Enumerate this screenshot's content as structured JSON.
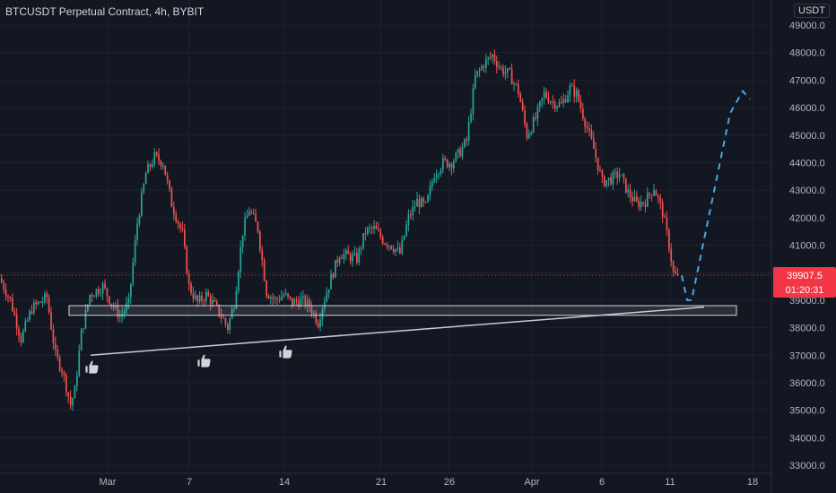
{
  "header": {
    "title": "BTCUSDT Perpetual Contract, 4h, BYBIT",
    "currency_unit": "USDT"
  },
  "price_badge": {
    "price": "39907.5",
    "countdown": "01:20:31",
    "color": "#f23645"
  },
  "colors": {
    "background": "#131722",
    "grid": "#1e222d",
    "up": "#26a69a",
    "down": "#ef5350",
    "trendline": "#c8ccd6",
    "projection": "#4aa8e0",
    "support_zone_border": "#d1d4dc"
  },
  "icons": [
    "thumbs-up-icon",
    "thumbs-up-icon",
    "thumbs-up-icon"
  ],
  "chart_data": {
    "type": "candlestick",
    "x_tick_labels": [
      "Mar",
      "7",
      "14",
      "21",
      "26",
      "Apr",
      "6",
      "11",
      "18"
    ],
    "y_tick_labels": [
      "33000.0",
      "34000.0",
      "35000.0",
      "36000.0",
      "37000.0",
      "38000.0",
      "39000.0",
      "40000.0",
      "41000.0",
      "42000.0",
      "43000.0",
      "44000.0",
      "45000.0",
      "46000.0",
      "47000.0",
      "48000.0",
      "49000.0"
    ],
    "ylim": [
      32800,
      49900
    ],
    "grid": true,
    "last_price": 39907.5,
    "price_path_anchors": [
      [
        0,
        39800
      ],
      [
        5,
        39000
      ],
      [
        10,
        37600
      ],
      [
        15,
        38700
      ],
      [
        22,
        39100
      ],
      [
        26,
        37000
      ],
      [
        29,
        36500
      ],
      [
        33,
        35200
      ],
      [
        35,
        35700
      ],
      [
        38,
        37800
      ],
      [
        42,
        39200
      ],
      [
        48,
        39500
      ],
      [
        52,
        38900
      ],
      [
        56,
        38400
      ],
      [
        60,
        38900
      ],
      [
        64,
        41800
      ],
      [
        68,
        43600
      ],
      [
        72,
        44200
      ],
      [
        76,
        44000
      ],
      [
        80,
        42500
      ],
      [
        85,
        41400
      ],
      [
        88,
        39500
      ],
      [
        92,
        38900
      ],
      [
        96,
        39200
      ],
      [
        100,
        38800
      ],
      [
        104,
        38300
      ],
      [
        106,
        38000
      ],
      [
        109,
        38900
      ],
      [
        113,
        41500
      ],
      [
        116,
        42300
      ],
      [
        120,
        41600
      ],
      [
        124,
        39300
      ],
      [
        128,
        39000
      ],
      [
        132,
        39200
      ],
      [
        136,
        38900
      ],
      [
        140,
        39000
      ],
      [
        144,
        38800
      ],
      [
        148,
        38200
      ],
      [
        150,
        38800
      ],
      [
        154,
        39800
      ],
      [
        158,
        40700
      ],
      [
        162,
        40600
      ],
      [
        166,
        40500
      ],
      [
        170,
        41500
      ],
      [
        174,
        41600
      ],
      [
        178,
        41200
      ],
      [
        182,
        41000
      ],
      [
        186,
        40700
      ],
      [
        190,
        42000
      ],
      [
        194,
        42600
      ],
      [
        198,
        42400
      ],
      [
        202,
        43600
      ],
      [
        206,
        44000
      ],
      [
        210,
        44000
      ],
      [
        214,
        44400
      ],
      [
        217,
        44800
      ],
      [
        221,
        47100
      ],
      [
        225,
        47600
      ],
      [
        229,
        47900
      ],
      [
        233,
        47400
      ],
      [
        237,
        47200
      ],
      [
        241,
        46600
      ],
      [
        245,
        45000
      ],
      [
        249,
        45600
      ],
      [
        253,
        46500
      ],
      [
        257,
        46200
      ],
      [
        261,
        46100
      ],
      [
        265,
        46700
      ],
      [
        268,
        46500
      ],
      [
        272,
        45500
      ],
      [
        276,
        44500
      ],
      [
        280,
        43300
      ],
      [
        284,
        43400
      ],
      [
        288,
        43600
      ],
      [
        292,
        42900
      ],
      [
        296,
        42500
      ],
      [
        300,
        42600
      ],
      [
        304,
        43100
      ],
      [
        308,
        42200
      ],
      [
        311,
        41000
      ],
      [
        313,
        40000
      ],
      [
        314,
        39900
      ]
    ],
    "candle_count": 315,
    "annotations": {
      "support_zone": {
        "top_price": 38800,
        "bottom_price": 38450,
        "start_bar": 19,
        "end_bar": 338
      },
      "rising_trendline": {
        "start_bar": 22,
        "start_price": 37000,
        "end_bar": 325,
        "end_price": 38750
      },
      "projection_path": [
        [
          314,
          39900
        ],
        [
          317,
          39000
        ],
        [
          320,
          39000
        ],
        [
          335,
          45800
        ],
        [
          338,
          46600
        ],
        [
          342,
          46300
        ]
      ],
      "touch_markers": [
        [
          24,
          36450
        ],
        [
          75,
          36500
        ],
        [
          106,
          36700
        ]
      ]
    }
  }
}
